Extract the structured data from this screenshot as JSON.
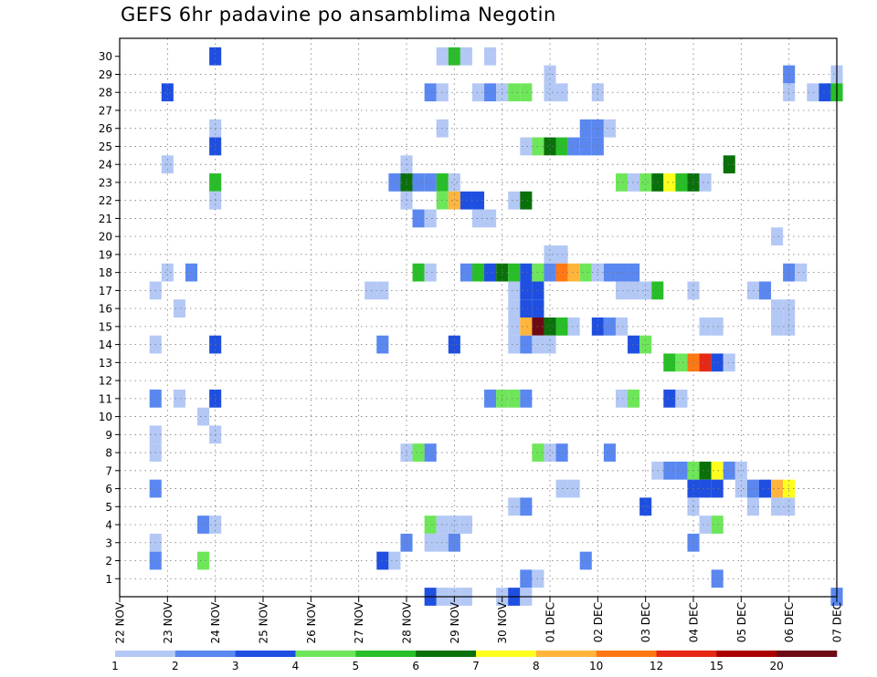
{
  "chart_data": {
    "type": "heatmap",
    "title": "GEFS 6hr padavine po ansamblima Negotin",
    "y_categories": [
      "1",
      "2",
      "3",
      "4",
      "5",
      "6",
      "7",
      "8",
      "9",
      "10",
      "11",
      "12",
      "13",
      "14",
      "15",
      "16",
      "17",
      "18",
      "19",
      "20",
      "21",
      "22",
      "23",
      "24",
      "25",
      "26",
      "27",
      "28",
      "29",
      "30"
    ],
    "x_tick_labels": [
      "22 NOV",
      "23 NOV",
      "24 NOV",
      "25 NOV",
      "26 NOV",
      "27 NOV",
      "28 NOV",
      "29 NOV",
      "30 NOV",
      "01 DEC",
      "02 DEC",
      "03 DEC",
      "04 DEC",
      "05 DEC",
      "06 DEC",
      "07 DEC"
    ],
    "time_steps_per_day": 4,
    "grid": true,
    "legend_position": "bottom",
    "legend_labels": [
      "1",
      "2",
      "3",
      "4",
      "5",
      "6",
      "7",
      "8",
      "10",
      "12",
      "15",
      "20"
    ],
    "legend_colors": [
      "#b3c8f5",
      "#5a87f0",
      "#1f4fe0",
      "#6ee65a",
      "#28be28",
      "#0a700a",
      "#ffff1e",
      "#ffb43c",
      "#ff7814",
      "#e62814",
      "#aa0000",
      "#6e0a14"
    ],
    "cells": [
      {
        "member": 30,
        "step": 8,
        "level": 2
      },
      {
        "member": 30,
        "step": 27,
        "level": 0
      },
      {
        "member": 30,
        "step": 28,
        "level": 4
      },
      {
        "member": 30,
        "step": 29,
        "level": 0
      },
      {
        "member": 30,
        "step": 31,
        "level": 0
      },
      {
        "member": 29,
        "step": 36,
        "level": 0
      },
      {
        "member": 29,
        "step": 56,
        "level": 1
      },
      {
        "member": 29,
        "step": 60,
        "level": 0
      },
      {
        "member": 28,
        "step": 4,
        "level": 2
      },
      {
        "member": 28,
        "step": 26,
        "level": 1
      },
      {
        "member": 28,
        "step": 27,
        "level": 0
      },
      {
        "member": 28,
        "step": 30,
        "level": 0
      },
      {
        "member": 28,
        "step": 31,
        "level": 1
      },
      {
        "member": 28,
        "step": 32,
        "level": 0
      },
      {
        "member": 28,
        "step": 33,
        "level": 3
      },
      {
        "member": 28,
        "step": 34,
        "level": 3
      },
      {
        "member": 28,
        "step": 36,
        "level": 0
      },
      {
        "member": 28,
        "step": 37,
        "level": 0
      },
      {
        "member": 28,
        "step": 40,
        "level": 0
      },
      {
        "member": 28,
        "step": 56,
        "level": 0
      },
      {
        "member": 28,
        "step": 58,
        "level": 0
      },
      {
        "member": 28,
        "step": 59,
        "level": 2
      },
      {
        "member": 28,
        "step": 60,
        "level": 4
      },
      {
        "member": 26,
        "step": 8,
        "level": 0
      },
      {
        "member": 26,
        "step": 27,
        "level": 0
      },
      {
        "member": 26,
        "step": 39,
        "level": 1
      },
      {
        "member": 26,
        "step": 40,
        "level": 1
      },
      {
        "member": 26,
        "step": 41,
        "level": 0
      },
      {
        "member": 25,
        "step": 8,
        "level": 2
      },
      {
        "member": 25,
        "step": 34,
        "level": 0
      },
      {
        "member": 25,
        "step": 35,
        "level": 3
      },
      {
        "member": 25,
        "step": 36,
        "level": 5
      },
      {
        "member": 25,
        "step": 37,
        "level": 4
      },
      {
        "member": 25,
        "step": 38,
        "level": 1
      },
      {
        "member": 25,
        "step": 39,
        "level": 1
      },
      {
        "member": 25,
        "step": 40,
        "level": 1
      },
      {
        "member": 24,
        "step": 4,
        "level": 0
      },
      {
        "member": 24,
        "step": 24,
        "level": 0
      },
      {
        "member": 24,
        "step": 51,
        "level": 5
      },
      {
        "member": 23,
        "step": 8,
        "level": 4
      },
      {
        "member": 23,
        "step": 23,
        "level": 1
      },
      {
        "member": 23,
        "step": 24,
        "level": 5
      },
      {
        "member": 23,
        "step": 25,
        "level": 1
      },
      {
        "member": 23,
        "step": 26,
        "level": 1
      },
      {
        "member": 23,
        "step": 27,
        "level": 4
      },
      {
        "member": 23,
        "step": 28,
        "level": 0
      },
      {
        "member": 23,
        "step": 42,
        "level": 3
      },
      {
        "member": 23,
        "step": 43,
        "level": 0
      },
      {
        "member": 23,
        "step": 44,
        "level": 3
      },
      {
        "member": 23,
        "step": 45,
        "level": 5
      },
      {
        "member": 23,
        "step": 46,
        "level": 6
      },
      {
        "member": 23,
        "step": 47,
        "level": 4
      },
      {
        "member": 23,
        "step": 48,
        "level": 5
      },
      {
        "member": 23,
        "step": 49,
        "level": 0
      },
      {
        "member": 22,
        "step": 8,
        "level": 0
      },
      {
        "member": 22,
        "step": 24,
        "level": 0
      },
      {
        "member": 22,
        "step": 27,
        "level": 3
      },
      {
        "member": 22,
        "step": 28,
        "level": 7
      },
      {
        "member": 22,
        "step": 29,
        "level": 2
      },
      {
        "member": 22,
        "step": 30,
        "level": 2
      },
      {
        "member": 22,
        "step": 33,
        "level": 0
      },
      {
        "member": 22,
        "step": 34,
        "level": 5
      },
      {
        "member": 21,
        "step": 25,
        "level": 1
      },
      {
        "member": 21,
        "step": 26,
        "level": 0
      },
      {
        "member": 21,
        "step": 30,
        "level": 0
      },
      {
        "member": 21,
        "step": 31,
        "level": 0
      },
      {
        "member": 20,
        "step": 55,
        "level": 0
      },
      {
        "member": 19,
        "step": 36,
        "level": 0
      },
      {
        "member": 19,
        "step": 37,
        "level": 0
      },
      {
        "member": 18,
        "step": 4,
        "level": 0
      },
      {
        "member": 18,
        "step": 6,
        "level": 1
      },
      {
        "member": 18,
        "step": 25,
        "level": 4
      },
      {
        "member": 18,
        "step": 26,
        "level": 0
      },
      {
        "member": 18,
        "step": 29,
        "level": 1
      },
      {
        "member": 18,
        "step": 30,
        "level": 4
      },
      {
        "member": 18,
        "step": 31,
        "level": 2
      },
      {
        "member": 18,
        "step": 32,
        "level": 5
      },
      {
        "member": 18,
        "step": 33,
        "level": 4
      },
      {
        "member": 18,
        "step": 34,
        "level": 2
      },
      {
        "member": 18,
        "step": 35,
        "level": 3
      },
      {
        "member": 18,
        "step": 36,
        "level": 1
      },
      {
        "member": 18,
        "step": 37,
        "level": 8
      },
      {
        "member": 18,
        "step": 38,
        "level": 7
      },
      {
        "member": 18,
        "step": 39,
        "level": 3
      },
      {
        "member": 18,
        "step": 40,
        "level": 0
      },
      {
        "member": 18,
        "step": 41,
        "level": 1
      },
      {
        "member": 18,
        "step": 42,
        "level": 1
      },
      {
        "member": 18,
        "step": 43,
        "level": 1
      },
      {
        "member": 18,
        "step": 56,
        "level": 1
      },
      {
        "member": 18,
        "step": 57,
        "level": 0
      },
      {
        "member": 17,
        "step": 3,
        "level": 0
      },
      {
        "member": 17,
        "step": 21,
        "level": 0
      },
      {
        "member": 17,
        "step": 22,
        "level": 0
      },
      {
        "member": 17,
        "step": 33,
        "level": 0
      },
      {
        "member": 17,
        "step": 34,
        "level": 2
      },
      {
        "member": 17,
        "step": 35,
        "level": 2
      },
      {
        "member": 17,
        "step": 42,
        "level": 0
      },
      {
        "member": 17,
        "step": 43,
        "level": 0
      },
      {
        "member": 17,
        "step": 44,
        "level": 0
      },
      {
        "member": 17,
        "step": 45,
        "level": 4
      },
      {
        "member": 17,
        "step": 48,
        "level": 0
      },
      {
        "member": 17,
        "step": 53,
        "level": 0
      },
      {
        "member": 17,
        "step": 54,
        "level": 1
      },
      {
        "member": 16,
        "step": 5,
        "level": 0
      },
      {
        "member": 16,
        "step": 33,
        "level": 0
      },
      {
        "member": 16,
        "step": 34,
        "level": 2
      },
      {
        "member": 16,
        "step": 35,
        "level": 2
      },
      {
        "member": 16,
        "step": 55,
        "level": 0
      },
      {
        "member": 16,
        "step": 56,
        "level": 0
      },
      {
        "member": 15,
        "step": 33,
        "level": 0
      },
      {
        "member": 15,
        "step": 34,
        "level": 7
      },
      {
        "member": 15,
        "step": 35,
        "level": 11
      },
      {
        "member": 15,
        "step": 36,
        "level": 5
      },
      {
        "member": 15,
        "step": 37,
        "level": 4
      },
      {
        "member": 15,
        "step": 38,
        "level": 0
      },
      {
        "member": 15,
        "step": 40,
        "level": 2
      },
      {
        "member": 15,
        "step": 41,
        "level": 1
      },
      {
        "member": 15,
        "step": 42,
        "level": 0
      },
      {
        "member": 15,
        "step": 49,
        "level": 0
      },
      {
        "member": 15,
        "step": 50,
        "level": 0
      },
      {
        "member": 15,
        "step": 55,
        "level": 0
      },
      {
        "member": 15,
        "step": 56,
        "level": 0
      },
      {
        "member": 14,
        "step": 3,
        "level": 0
      },
      {
        "member": 14,
        "step": 8,
        "level": 2
      },
      {
        "member": 14,
        "step": 22,
        "level": 1
      },
      {
        "member": 14,
        "step": 28,
        "level": 2
      },
      {
        "member": 14,
        "step": 33,
        "level": 0
      },
      {
        "member": 14,
        "step": 34,
        "level": 1
      },
      {
        "member": 14,
        "step": 35,
        "level": 0
      },
      {
        "member": 14,
        "step": 36,
        "level": 0
      },
      {
        "member": 14,
        "step": 43,
        "level": 2
      },
      {
        "member": 14,
        "step": 44,
        "level": 3
      },
      {
        "member": 13,
        "step": 46,
        "level": 4
      },
      {
        "member": 13,
        "step": 47,
        "level": 3
      },
      {
        "member": 13,
        "step": 48,
        "level": 8
      },
      {
        "member": 13,
        "step": 49,
        "level": 9
      },
      {
        "member": 13,
        "step": 50,
        "level": 2
      },
      {
        "member": 13,
        "step": 51,
        "level": 0
      },
      {
        "member": 11,
        "step": 3,
        "level": 1
      },
      {
        "member": 11,
        "step": 5,
        "level": 0
      },
      {
        "member": 11,
        "step": 8,
        "level": 2
      },
      {
        "member": 11,
        "step": 31,
        "level": 1
      },
      {
        "member": 11,
        "step": 32,
        "level": 3
      },
      {
        "member": 11,
        "step": 33,
        "level": 3
      },
      {
        "member": 11,
        "step": 34,
        "level": 1
      },
      {
        "member": 11,
        "step": 42,
        "level": 0
      },
      {
        "member": 11,
        "step": 43,
        "level": 3
      },
      {
        "member": 11,
        "step": 46,
        "level": 2
      },
      {
        "member": 11,
        "step": 47,
        "level": 0
      },
      {
        "member": 10,
        "step": 7,
        "level": 0
      },
      {
        "member": 9,
        "step": 3,
        "level": 0
      },
      {
        "member": 9,
        "step": 8,
        "level": 0
      },
      {
        "member": 8,
        "step": 3,
        "level": 0
      },
      {
        "member": 8,
        "step": 24,
        "level": 0
      },
      {
        "member": 8,
        "step": 25,
        "level": 3
      },
      {
        "member": 8,
        "step": 26,
        "level": 1
      },
      {
        "member": 8,
        "step": 35,
        "level": 3
      },
      {
        "member": 8,
        "step": 36,
        "level": 0
      },
      {
        "member": 8,
        "step": 37,
        "level": 1
      },
      {
        "member": 8,
        "step": 41,
        "level": 1
      },
      {
        "member": 7,
        "step": 45,
        "level": 0
      },
      {
        "member": 7,
        "step": 46,
        "level": 1
      },
      {
        "member": 7,
        "step": 47,
        "level": 1
      },
      {
        "member": 7,
        "step": 48,
        "level": 3
      },
      {
        "member": 7,
        "step": 49,
        "level": 5
      },
      {
        "member": 7,
        "step": 50,
        "level": 6
      },
      {
        "member": 7,
        "step": 51,
        "level": 1
      },
      {
        "member": 7,
        "step": 52,
        "level": 0
      },
      {
        "member": 6,
        "step": 3,
        "level": 1
      },
      {
        "member": 6,
        "step": 37,
        "level": 0
      },
      {
        "member": 6,
        "step": 38,
        "level": 0
      },
      {
        "member": 6,
        "step": 48,
        "level": 2
      },
      {
        "member": 6,
        "step": 49,
        "level": 2
      },
      {
        "member": 6,
        "step": 50,
        "level": 2
      },
      {
        "member": 6,
        "step": 52,
        "level": 0
      },
      {
        "member": 6,
        "step": 53,
        "level": 1
      },
      {
        "member": 6,
        "step": 54,
        "level": 2
      },
      {
        "member": 6,
        "step": 55,
        "level": 7
      },
      {
        "member": 6,
        "step": 56,
        "level": 6
      },
      {
        "member": 5,
        "step": 33,
        "level": 0
      },
      {
        "member": 5,
        "step": 34,
        "level": 1
      },
      {
        "member": 5,
        "step": 44,
        "level": 2
      },
      {
        "member": 5,
        "step": 48,
        "level": 0
      },
      {
        "member": 5,
        "step": 53,
        "level": 0
      },
      {
        "member": 5,
        "step": 55,
        "level": 0
      },
      {
        "member": 5,
        "step": 56,
        "level": 0
      },
      {
        "member": 4,
        "step": 7,
        "level": 1
      },
      {
        "member": 4,
        "step": 8,
        "level": 0
      },
      {
        "member": 4,
        "step": 26,
        "level": 3
      },
      {
        "member": 4,
        "step": 27,
        "level": 0
      },
      {
        "member": 4,
        "step": 28,
        "level": 0
      },
      {
        "member": 4,
        "step": 29,
        "level": 0
      },
      {
        "member": 4,
        "step": 49,
        "level": 0
      },
      {
        "member": 4,
        "step": 50,
        "level": 3
      },
      {
        "member": 3,
        "step": 3,
        "level": 0
      },
      {
        "member": 3,
        "step": 24,
        "level": 1
      },
      {
        "member": 3,
        "step": 26,
        "level": 0
      },
      {
        "member": 3,
        "step": 27,
        "level": 0
      },
      {
        "member": 3,
        "step": 28,
        "level": 1
      },
      {
        "member": 3,
        "step": 48,
        "level": 1
      },
      {
        "member": 2,
        "step": 3,
        "level": 1
      },
      {
        "member": 2,
        "step": 7,
        "level": 3
      },
      {
        "member": 2,
        "step": 22,
        "level": 2
      },
      {
        "member": 2,
        "step": 23,
        "level": 0
      },
      {
        "member": 2,
        "step": 39,
        "level": 1
      },
      {
        "member": 1,
        "step": 34,
        "level": 1
      },
      {
        "member": 1,
        "step": 35,
        "level": 0
      },
      {
        "member": 1,
        "step": 50,
        "level": 1
      },
      {
        "member": 0,
        "step": 26,
        "level": 2
      },
      {
        "member": 0,
        "step": 27,
        "level": 0
      },
      {
        "member": 0,
        "step": 28,
        "level": 0
      },
      {
        "member": 0,
        "step": 29,
        "level": 0
      },
      {
        "member": 0,
        "step": 32,
        "level": 0
      },
      {
        "member": 0,
        "step": 33,
        "level": 2
      },
      {
        "member": 0,
        "step": 34,
        "level": 0
      },
      {
        "member": 0,
        "step": 60,
        "level": 1
      }
    ]
  }
}
